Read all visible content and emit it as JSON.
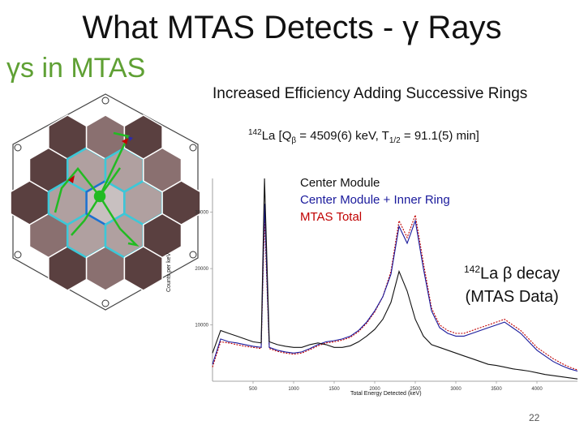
{
  "slide": {
    "title": "What MTAS Detects - γ Rays",
    "subtitle_left": "γs in MTAS",
    "subtitle_right": "Increased Efficiency Adding Successive Rings",
    "decay_info": {
      "isotope_mass": "142",
      "element": "La [Q",
      "q_sub": "β",
      "q_value": " = 4509(6) keV, T",
      "t_sub": "1/2",
      "half_life": " = 91.1(5) min]"
    },
    "annotation": {
      "mass": "142",
      "line1": "La β decay",
      "line2": "(MTAS Data)"
    },
    "page_number": "22",
    "colors": {
      "gamma_green": "#5fa034",
      "hex_dark": "#5a4040",
      "hex_mid": "#8a7070",
      "hex_light": "#b0a0a0",
      "hex_center": "#c8c0c0",
      "ring_cyan": "#3cc8d8",
      "center_blue": "#1e6fd0",
      "ray_green": "#22bb22"
    },
    "detector_icons": [
      "hexagonal-detector-diagram",
      "gamma-ray-trace"
    ]
  },
  "chart_data": {
    "type": "line",
    "xlabel": "Total Energy Detected (keV)",
    "ylabel": "Counts per keV",
    "xlim": [
      0,
      4500
    ],
    "ylim": [
      0,
      36000
    ],
    "x_ticks": [
      "500",
      "1000",
      "1500",
      "2000",
      "2500",
      "3000",
      "3500",
      "4000"
    ],
    "y_ticks": [
      "10000",
      "20000",
      "30000"
    ],
    "legend": [
      "Center Module",
      "Center Module + Inner Ring",
      "MTAS Total"
    ],
    "legend_placement": "top-center",
    "x": [
      0,
      100,
      200,
      300,
      400,
      500,
      600,
      641,
      700,
      800,
      900,
      1000,
      1100,
      1200,
      1300,
      1400,
      1500,
      1600,
      1700,
      1800,
      1900,
      2000,
      2100,
      2200,
      2300,
      2400,
      2500,
      2600,
      2700,
      2800,
      2900,
      3000,
      3100,
      3200,
      3300,
      3400,
      3500,
      3600,
      3700,
      3800,
      3900,
      4000,
      4100,
      4200,
      4300,
      4400,
      4500
    ],
    "series": [
      {
        "name": "Center Module",
        "color": "#111111",
        "values": [
          5000,
          9000,
          8500,
          8000,
          7500,
          7000,
          6800,
          52000,
          7000,
          6500,
          6200,
          6000,
          6000,
          6500,
          6800,
          6500,
          6000,
          6000,
          6300,
          7000,
          8000,
          9200,
          11000,
          14000,
          19500,
          16000,
          11000,
          8000,
          6500,
          6000,
          5500,
          5000,
          4500,
          4000,
          3500,
          3000,
          2800,
          2500,
          2200,
          2000,
          1800,
          1500,
          1200,
          1000,
          800,
          600,
          400
        ]
      },
      {
        "name": "Center Module + Inner Ring",
        "color": "#1a1a9c",
        "values": [
          3000,
          7500,
          7000,
          6800,
          6500,
          6200,
          6000,
          31500,
          6000,
          5500,
          5200,
          5000,
          5200,
          5800,
          6500,
          7000,
          7200,
          7500,
          8000,
          9000,
          10500,
          12500,
          15000,
          19000,
          27500,
          24500,
          28500,
          20000,
          12500,
          9500,
          8500,
          8000,
          8000,
          8500,
          9000,
          9500,
          10000,
          10500,
          9500,
          8500,
          7000,
          5500,
          4500,
          3500,
          2800,
          2200,
          1800
        ]
      },
      {
        "name": "MTAS Total",
        "color": "#c00000",
        "values": [
          2500,
          7000,
          6800,
          6500,
          6200,
          6000,
          5800,
          29000,
          5800,
          5300,
          5000,
          4800,
          5000,
          5600,
          6300,
          6800,
          7000,
          7300,
          7800,
          8800,
          10300,
          12300,
          15000,
          19500,
          28500,
          25500,
          29500,
          21000,
          13000,
          10000,
          9000,
          8500,
          8500,
          9000,
          9500,
          10000,
          10500,
          11000,
          10000,
          9000,
          7500,
          6000,
          5000,
          4000,
          3200,
          2500,
          2000
        ]
      }
    ],
    "grid": false
  }
}
